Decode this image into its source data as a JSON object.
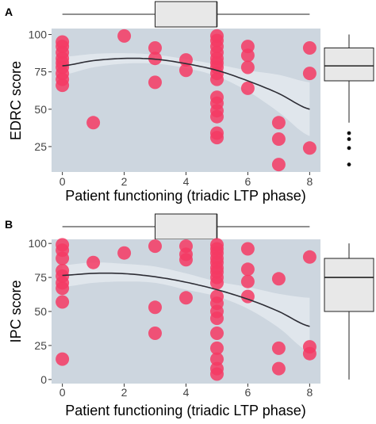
{
  "chart_data": [
    {
      "panel": "A",
      "type": "scatter",
      "xlabel": "Patient functioning (triadic LTP phase)",
      "ylabel": "EDRC score",
      "x_ticks": [
        0,
        2,
        4,
        6,
        8
      ],
      "y_ticks": [
        25,
        50,
        75,
        100
      ],
      "xlim": [
        -0.35,
        8.35
      ],
      "ylim": [
        8,
        104
      ],
      "grid": false,
      "points": [
        [
          0,
          95
        ],
        [
          0,
          92
        ],
        [
          0,
          88
        ],
        [
          0,
          84
        ],
        [
          0,
          81
        ],
        [
          0,
          78
        ],
        [
          0,
          74
        ],
        [
          0,
          70
        ],
        [
          0,
          66
        ],
        [
          1,
          41
        ],
        [
          2,
          99
        ],
        [
          3,
          91
        ],
        [
          3,
          84
        ],
        [
          3,
          68
        ],
        [
          4,
          83
        ],
        [
          4,
          76
        ],
        [
          5,
          99
        ],
        [
          5,
          96
        ],
        [
          5,
          92
        ],
        [
          5,
          88
        ],
        [
          5,
          84
        ],
        [
          5,
          81
        ],
        [
          5,
          78
        ],
        [
          5,
          74
        ],
        [
          5,
          70
        ],
        [
          5,
          58
        ],
        [
          5,
          54
        ],
        [
          5,
          49
        ],
        [
          5,
          45
        ],
        [
          5,
          34
        ],
        [
          5,
          31
        ],
        [
          6,
          92
        ],
        [
          6,
          86
        ],
        [
          6,
          78
        ],
        [
          6,
          64
        ],
        [
          7,
          41
        ],
        [
          7,
          30
        ],
        [
          7,
          13
        ],
        [
          8,
          91
        ],
        [
          8,
          74
        ],
        [
          8,
          24
        ]
      ],
      "fit_line": {
        "x": [
          0,
          1,
          2,
          3,
          4,
          5,
          6,
          7,
          8
        ],
        "y": [
          79,
          82.5,
          84,
          83.5,
          80.5,
          76,
          69,
          60.5,
          50
        ],
        "ci_low": [
          73,
          78,
          80.5,
          80.5,
          77.5,
          72,
          62,
          48,
          32
        ],
        "ci_high": [
          85,
          87,
          87.5,
          86.5,
          83.5,
          80,
          76,
          73,
          68
        ]
      },
      "marginal_box_x": {
        "min": 0,
        "q1": 3,
        "median": 5,
        "q3": 5,
        "max": 8
      },
      "marginal_box_y": {
        "min": 41,
        "q1": 69,
        "median": 79,
        "q3": 91,
        "max": 100,
        "outliers": [
          34,
          30,
          24,
          13
        ]
      }
    },
    {
      "panel": "B",
      "type": "scatter",
      "xlabel": "Patient functioning (triadic LTP phase)",
      "ylabel": "IPC score",
      "x_ticks": [
        0,
        2,
        4,
        6,
        8
      ],
      "y_ticks": [
        0,
        25,
        50,
        75,
        100
      ],
      "xlim": [
        -0.35,
        8.35
      ],
      "ylim": [
        -3,
        103
      ],
      "grid": false,
      "points": [
        [
          0,
          99
        ],
        [
          0,
          95
        ],
        [
          0,
          89
        ],
        [
          0,
          80
        ],
        [
          0,
          76
        ],
        [
          0,
          71
        ],
        [
          0,
          67
        ],
        [
          0,
          57
        ],
        [
          0,
          15
        ],
        [
          1,
          86
        ],
        [
          2,
          93
        ],
        [
          3,
          98
        ],
        [
          3,
          53
        ],
        [
          3,
          34
        ],
        [
          4,
          98
        ],
        [
          4,
          92
        ],
        [
          4,
          88
        ],
        [
          4,
          60
        ],
        [
          5,
          99
        ],
        [
          5,
          96
        ],
        [
          5,
          93
        ],
        [
          5,
          89
        ],
        [
          5,
          86
        ],
        [
          5,
          82
        ],
        [
          5,
          79
        ],
        [
          5,
          75
        ],
        [
          5,
          71
        ],
        [
          5,
          61
        ],
        [
          5,
          56
        ],
        [
          5,
          50
        ],
        [
          5,
          45
        ],
        [
          5,
          34
        ],
        [
          5,
          23
        ],
        [
          5,
          15
        ],
        [
          5,
          8
        ],
        [
          5,
          4
        ],
        [
          6,
          96
        ],
        [
          6,
          81
        ],
        [
          6,
          72
        ],
        [
          6,
          61
        ],
        [
          7,
          74
        ],
        [
          7,
          23
        ],
        [
          7,
          8
        ],
        [
          8,
          90
        ],
        [
          8,
          24
        ],
        [
          8,
          19
        ]
      ],
      "fit_line": {
        "x": [
          0,
          1,
          2,
          3,
          4,
          5,
          6,
          7,
          8
        ],
        "y": [
          76.5,
          78,
          77.8,
          75.5,
          71.5,
          66,
          59,
          50,
          39
        ],
        "ci_low": [
          68,
          71,
          72,
          71,
          66,
          61,
          52,
          38,
          20
        ],
        "ci_high": [
          84,
          86,
          85,
          83,
          78,
          72,
          68,
          63,
          60
        ]
      },
      "marginal_box_x": {
        "min": 0,
        "q1": 3,
        "median": 5,
        "q3": 5,
        "max": 8
      },
      "marginal_box_y": {
        "min": 0,
        "q1": 50,
        "median": 75,
        "q3": 89,
        "max": 100,
        "outliers": []
      }
    }
  ],
  "colors": {
    "point": "#f43a64",
    "plot_background": "#cdd6df",
    "ribbon": "#e6ebf0",
    "fit_line": "#2d2d35",
    "box_fill": "#e8e8e8"
  }
}
